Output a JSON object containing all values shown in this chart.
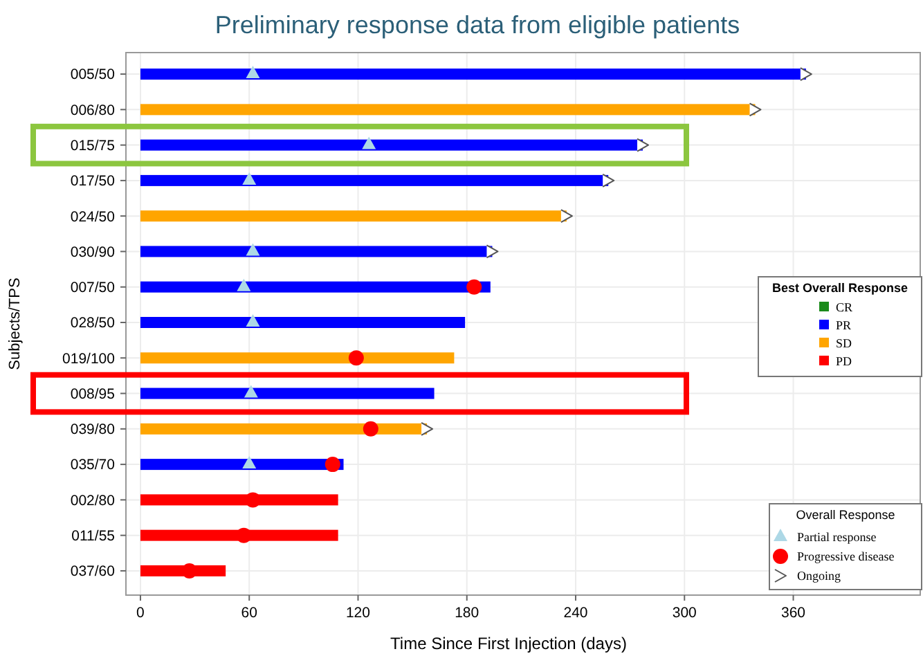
{
  "chart_data": {
    "type": "bar",
    "orientation": "horizontal",
    "title": "Preliminary response data from eligible patients",
    "xlabel": "Time Since First Injection (days)",
    "ylabel": "Subjects/TPS",
    "categories": [
      "005/50",
      "006/80",
      "015/75",
      "017/50",
      "024/50",
      "030/90",
      "007/50",
      "028/50",
      "019/100",
      "008/95",
      "039/80",
      "035/70",
      "002/80",
      "011/55",
      "037/60"
    ],
    "series": [
      {
        "name": "CR",
        "color": "#1a8a1a",
        "values": [
          null,
          null,
          null,
          null,
          null,
          null,
          null,
          null,
          null,
          null,
          null,
          null,
          null,
          null,
          null
        ]
      },
      {
        "name": "PR",
        "color": "#0000ff",
        "values": [
          367,
          null,
          277,
          258,
          null,
          194,
          193,
          179,
          null,
          162,
          null,
          112,
          null,
          null,
          null
        ]
      },
      {
        "name": "SD",
        "color": "#ffa500",
        "values": [
          null,
          339,
          null,
          null,
          235,
          null,
          null,
          null,
          173,
          null,
          158,
          null,
          null,
          null,
          null
        ]
      },
      {
        "name": "PD",
        "color": "#ff0000",
        "values": [
          null,
          null,
          null,
          null,
          null,
          null,
          null,
          null,
          null,
          null,
          null,
          null,
          109,
          109,
          47
        ]
      },
      {
        "name": "Partial response",
        "type": "scatter",
        "marker": "triangle",
        "color": "#add8e6",
        "values": [
          62,
          null,
          126,
          60,
          null,
          62,
          57,
          62,
          null,
          61,
          null,
          60,
          null,
          null,
          null
        ]
      },
      {
        "name": "Progressive disease",
        "type": "scatter",
        "marker": "circle",
        "color": "#ff0000",
        "values": [
          null,
          null,
          null,
          null,
          null,
          null,
          184,
          null,
          119,
          null,
          127,
          106,
          62,
          57,
          27
        ]
      },
      {
        "name": "Ongoing",
        "type": "scatter",
        "color": "#555555",
        "values": [
          367,
          339,
          277,
          258,
          235,
          194,
          null,
          null,
          null,
          null,
          158,
          null,
          null,
          null,
          null
        ]
      }
    ],
    "legend_title": [
      "Best Overall Response",
      "Overall Response"
    ],
    "legend": "right",
    "xlim": [
      -8,
      430
    ],
    "xticks": [
      0,
      60,
      120,
      180,
      240,
      300,
      360
    ],
    "grid": true
  }
}
